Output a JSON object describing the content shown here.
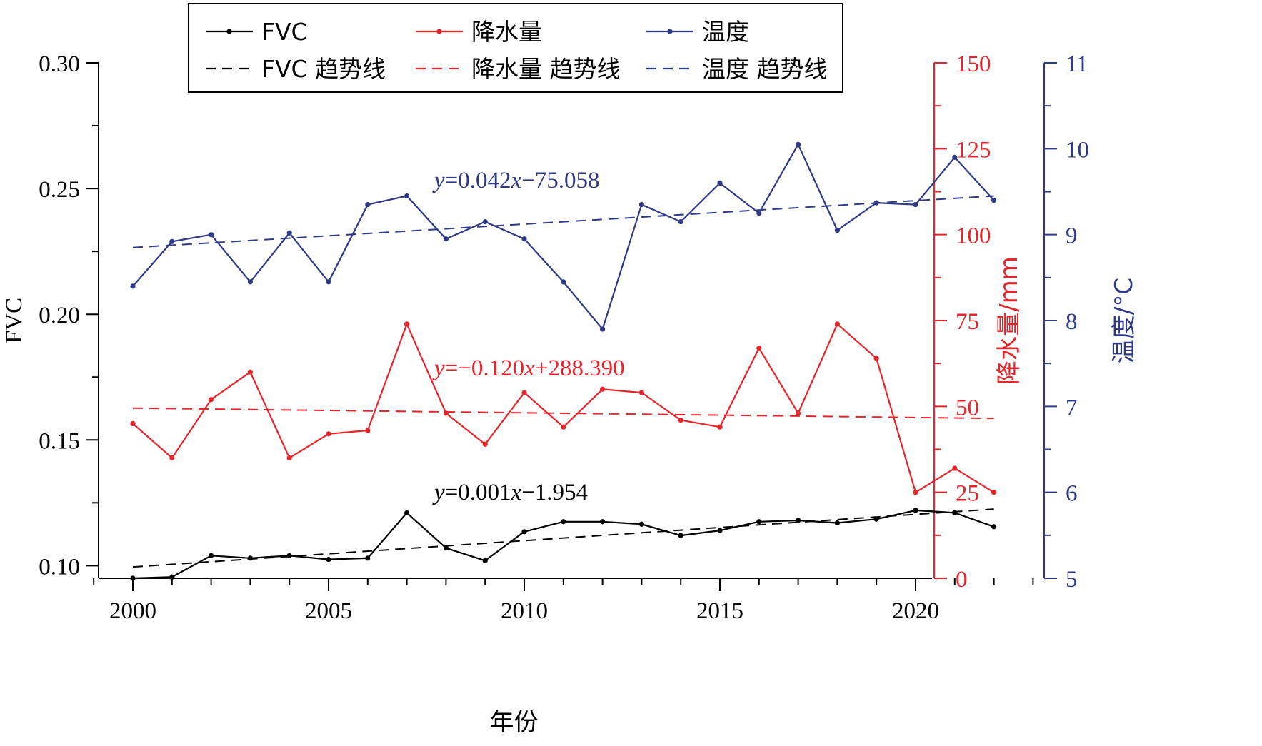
{
  "chart_data": {
    "type": "line",
    "xlabel": "年份",
    "x": [
      2000,
      2001,
      2002,
      2003,
      2004,
      2005,
      2006,
      2007,
      2008,
      2009,
      2010,
      2011,
      2012,
      2013,
      2014,
      2015,
      2016,
      2017,
      2018,
      2019,
      2020,
      2021,
      2022
    ],
    "x_ticks": [
      2000,
      2005,
      2010,
      2015,
      2020
    ],
    "xlim": [
      1999,
      2023
    ],
    "axes": {
      "left": {
        "label": "FVC",
        "lim": [
          0.095,
          0.3
        ],
        "ticks": [
          "0.10",
          "0.15",
          "0.20",
          "0.25",
          "0.30"
        ],
        "color": "#000000"
      },
      "right1": {
        "label": "降水量/mm",
        "lim": [
          0,
          150
        ],
        "ticks": [
          "0",
          "25",
          "50",
          "75",
          "100",
          "125",
          "150"
        ],
        "color": "#e8242b"
      },
      "right2": {
        "label": "温度/°C",
        "lim": [
          5,
          11
        ],
        "ticks": [
          "5",
          "6",
          "7",
          "8",
          "9",
          "10",
          "11"
        ],
        "color": "#2e3a87"
      }
    },
    "series": [
      {
        "name": "FVC",
        "axis": "left",
        "color": "#000000",
        "values": [
          0.095,
          0.0955,
          0.104,
          0.103,
          0.104,
          0.1025,
          0.103,
          0.121,
          0.107,
          0.102,
          0.1135,
          0.1175,
          0.1175,
          0.1165,
          0.112,
          0.114,
          0.1175,
          0.118,
          0.117,
          0.1185,
          0.122,
          0.121,
          0.1155
        ]
      },
      {
        "name": "降水量",
        "axis": "right1",
        "color": "#e8242b",
        "values": [
          45,
          35,
          52,
          60,
          35,
          42,
          43,
          74,
          48,
          39,
          54,
          44,
          55,
          54,
          46,
          44,
          67,
          48,
          74,
          64,
          25,
          32,
          25
        ]
      },
      {
        "name": "温度",
        "axis": "right2",
        "color": "#2e3a87",
        "values": [
          8.4,
          8.92,
          9,
          8.45,
          9.02,
          8.45,
          9.35,
          9.45,
          8.95,
          9.15,
          8.95,
          8.45,
          7.9,
          9.35,
          9.15,
          9.6,
          9.25,
          10.05,
          9.05,
          9.37,
          9.35,
          9.9,
          9.4
        ]
      }
    ],
    "trendlines": [
      {
        "name": "FVC 趋势线",
        "axis": "left",
        "color": "#000000",
        "slope": 0.001,
        "intercept": -1.954,
        "equation": {
          "y": "y",
          "eq": "=",
          "coef": "0.001",
          "x": "x",
          "rest": "−1.954"
        }
      },
      {
        "name": "降水量 趋势线",
        "axis": "right1",
        "color": "#e8242b",
        "slope": -0.12,
        "intercept": 288.39,
        "equation": {
          "y": "y",
          "eq": "=",
          "coef": "−0.120",
          "x": "x",
          "rest": "+288.390"
        }
      },
      {
        "name": "温度 趋势线",
        "axis": "right2",
        "color": "#2e3a87",
        "slope": 0.042,
        "intercept": -75.058,
        "equation": {
          "y": "y",
          "eq": "=",
          "coef": "0.042",
          "x": "x",
          "rest": "−75.058"
        }
      }
    ],
    "trend_display": {
      "FVC 趋势线": [
        0.0995,
        0.1225
      ],
      "降水量 趋势线": [
        49.5,
        46.5
      ],
      "温度 趋势线": [
        8.85,
        9.45
      ]
    },
    "legend": {
      "placement": "top-center",
      "items": [
        "FVC",
        "降水量",
        "温度",
        "FVC 趋势线",
        "降水量 趋势线",
        "温度 趋势线"
      ]
    }
  }
}
